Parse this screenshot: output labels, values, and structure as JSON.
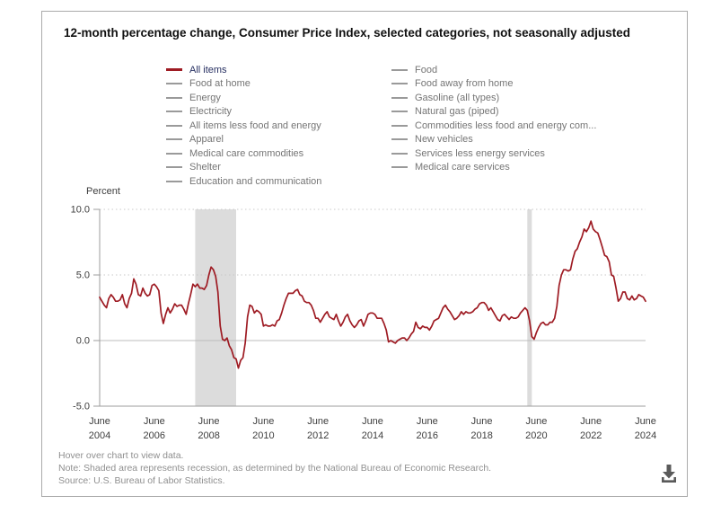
{
  "panel": {
    "title": "12-month percentage change, Consumer Price Index, selected categories, not seasonally adjusted"
  },
  "legend": {
    "selected_color": "#9e1b23",
    "unselected_color": "#9a9a9a",
    "column1": [
      {
        "label": "All items",
        "selected": true
      },
      {
        "label": "Food at home",
        "selected": false
      },
      {
        "label": "Energy",
        "selected": false
      },
      {
        "label": "Electricity",
        "selected": false
      },
      {
        "label": "All items less food and energy",
        "selected": false
      },
      {
        "label": "Apparel",
        "selected": false
      },
      {
        "label": "Medical care commodities",
        "selected": false
      },
      {
        "label": "Shelter",
        "selected": false
      },
      {
        "label": "Education and communication",
        "selected": false
      }
    ],
    "column2": [
      {
        "label": "Food",
        "selected": false
      },
      {
        "label": "Food away from home",
        "selected": false
      },
      {
        "label": "Gasoline (all types)",
        "selected": false
      },
      {
        "label": "Natural gas (piped)",
        "selected": false
      },
      {
        "label": "Commodities less food and energy com...",
        "selected": false
      },
      {
        "label": "New vehicles",
        "selected": false
      },
      {
        "label": "Services less energy services",
        "selected": false
      },
      {
        "label": "Medical care services",
        "selected": false
      }
    ]
  },
  "chart_data": {
    "type": "line",
    "title": "12-month percentage change, Consumer Price Index, selected categories, not seasonally adjusted",
    "xlabel": "",
    "ylabel": "Percent",
    "ylim": [
      -5,
      10
    ],
    "yticks": [
      10.0,
      5.0,
      0.0,
      -5.0
    ],
    "grid": "dotted horizontal at yticks, solid line at 0",
    "legend_position": "top",
    "line_color": "#9e1b23",
    "recession_color": "#dcdcdc",
    "recessions_months_from_start": [
      {
        "from": 42,
        "to": 60,
        "label": "Dec 2007 - Jun 2009"
      },
      {
        "from": 188,
        "to": 190,
        "label": "Feb 2020 - Apr 2020"
      }
    ],
    "xticks": [
      {
        "m": 0,
        "top": "June",
        "bottom": "2004"
      },
      {
        "m": 24,
        "top": "June",
        "bottom": "2006"
      },
      {
        "m": 48,
        "top": "June",
        "bottom": "2008"
      },
      {
        "m": 72,
        "top": "June",
        "bottom": "2010"
      },
      {
        "m": 96,
        "top": "June",
        "bottom": "2012"
      },
      {
        "m": 120,
        "top": "June",
        "bottom": "2014"
      },
      {
        "m": 144,
        "top": "June",
        "bottom": "2016"
      },
      {
        "m": 168,
        "top": "June",
        "bottom": "2018"
      },
      {
        "m": 192,
        "top": "June",
        "bottom": "2020"
      },
      {
        "m": 216,
        "top": "June",
        "bottom": "2022"
      },
      {
        "m": 240,
        "top": "June",
        "bottom": "2024"
      }
    ],
    "series": [
      {
        "name": "All items",
        "start": "June 2004",
        "end": "June 2024",
        "frequency": "monthly",
        "values": [
          3.3,
          3.0,
          2.7,
          2.5,
          3.2,
          3.5,
          3.3,
          3.0,
          3.0,
          3.1,
          3.5,
          2.8,
          2.5,
          3.2,
          3.6,
          4.7,
          4.3,
          3.5,
          3.4,
          4.0,
          3.6,
          3.4,
          3.5,
          4.2,
          4.3,
          4.1,
          3.8,
          2.1,
          1.3,
          2.0,
          2.5,
          2.1,
          2.4,
          2.8,
          2.6,
          2.7,
          2.7,
          2.4,
          2.0,
          2.8,
          3.5,
          4.3,
          4.1,
          4.3,
          4.0,
          4.0,
          3.9,
          4.2,
          5.0,
          5.6,
          5.4,
          4.9,
          3.7,
          1.1,
          0.1,
          0.0,
          0.2,
          -0.4,
          -0.7,
          -1.3,
          -1.4,
          -2.1,
          -1.5,
          -1.3,
          -0.2,
          1.8,
          2.7,
          2.6,
          2.1,
          2.3,
          2.2,
          2.0,
          1.1,
          1.2,
          1.1,
          1.1,
          1.2,
          1.1,
          1.5,
          1.6,
          2.1,
          2.7,
          3.2,
          3.6,
          3.6,
          3.6,
          3.8,
          3.9,
          3.5,
          3.4,
          3.0,
          2.9,
          2.9,
          2.7,
          2.3,
          1.7,
          1.7,
          1.4,
          1.7,
          2.0,
          2.2,
          1.8,
          1.7,
          1.6,
          2.0,
          1.5,
          1.1,
          1.4,
          1.8,
          2.0,
          1.5,
          1.2,
          1.0,
          1.2,
          1.5,
          1.6,
          1.1,
          1.5,
          2.0,
          2.1,
          2.1,
          2.0,
          1.7,
          1.7,
          1.7,
          1.3,
          0.8,
          -0.1,
          0.0,
          -0.1,
          -0.2,
          0.0,
          0.1,
          0.2,
          0.2,
          0.0,
          0.2,
          0.5,
          0.7,
          1.4,
          1.0,
          0.9,
          1.1,
          1.0,
          1.0,
          0.8,
          1.1,
          1.5,
          1.6,
          1.7,
          2.1,
          2.5,
          2.7,
          2.4,
          2.2,
          1.9,
          1.6,
          1.7,
          1.9,
          2.2,
          2.0,
          2.2,
          2.1,
          2.1,
          2.2,
          2.4,
          2.5,
          2.8,
          2.9,
          2.9,
          2.7,
          2.3,
          2.5,
          2.2,
          1.9,
          1.6,
          1.5,
          1.9,
          2.0,
          1.8,
          1.6,
          1.8,
          1.7,
          1.7,
          1.8,
          2.1,
          2.3,
          2.5,
          2.3,
          1.5,
          0.3,
          0.1,
          0.6,
          1.0,
          1.3,
          1.4,
          1.2,
          1.2,
          1.4,
          1.4,
          1.7,
          2.6,
          4.2,
          5.0,
          5.4,
          5.4,
          5.3,
          5.4,
          6.2,
          6.8,
          7.0,
          7.5,
          7.9,
          8.5,
          8.3,
          8.6,
          9.1,
          8.5,
          8.3,
          8.2,
          7.7,
          7.1,
          6.5,
          6.4,
          6.0,
          5.0,
          4.9,
          4.0,
          3.0,
          3.2,
          3.7,
          3.7,
          3.2,
          3.1,
          3.4,
          3.1,
          3.2,
          3.5,
          3.4,
          3.3,
          3.0
        ]
      }
    ]
  },
  "footer": {
    "hover": "Hover over chart to view data.",
    "note": "Note: Shaded area represents recession, as determined by the National Bureau of Economic Research.",
    "source": "Source: U.S. Bureau of Labor Statistics."
  }
}
